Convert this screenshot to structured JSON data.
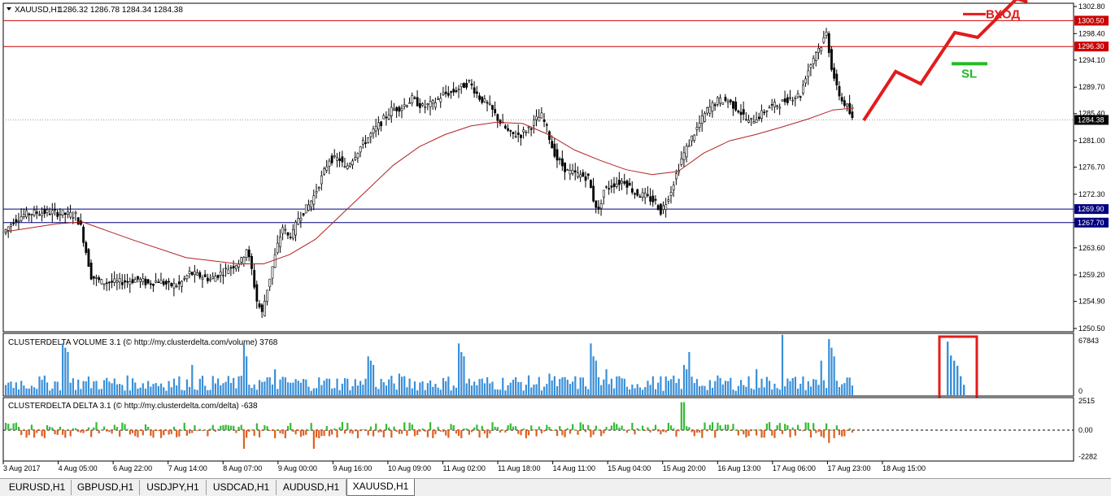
{
  "window": {
    "symbol_header": "XAUUSD,H1",
    "ohlc": "1286.32 1286.78 1284.34 1284.38"
  },
  "chart_data": [
    {
      "type": "line",
      "subtype": "candlestick_with_moving_average",
      "symbol": "XAUUSD,H1",
      "ylim": [
        1250.5,
        1302.8
      ],
      "y_ticks": [
        "1302.80",
        "1298.40",
        "1294.10",
        "1289.70",
        "1285.40",
        "1281.00",
        "1276.70",
        "1272.30",
        "1267.70",
        "1263.60",
        "1259.20",
        "1254.90",
        "1250.50"
      ],
      "x_ticks": [
        "3 Aug 2017",
        "4 Aug 05:00",
        "6 Aug 22:00",
        "7 Aug 14:00",
        "8 Aug 07:00",
        "9 Aug 00:00",
        "9 Aug 16:00",
        "10 Aug 09:00",
        "11 Aug 02:00",
        "11 Aug 18:00",
        "14 Aug 11:00",
        "15 Aug 04:00",
        "15 Aug 20:00",
        "16 Aug 13:00",
        "17 Aug 06:00",
        "17 Aug 23:00",
        "18 Aug 15:00"
      ],
      "price_levels": [
        {
          "value": 1300.5,
          "label": "1300.50",
          "color": "#cc0000"
        },
        {
          "value": 1296.3,
          "label": "1296.30",
          "color": "#cc0000"
        },
        {
          "value": 1269.9,
          "label": "1269.90",
          "color": "#00007f"
        },
        {
          "value": 1267.7,
          "label": "1267.70",
          "color": "#00007f"
        }
      ],
      "current_price": {
        "value": 1284.38,
        "label": "1284.38"
      },
      "close_path": [
        [
          0,
          1266
        ],
        [
          4,
          1268
        ],
        [
          8,
          1269
        ],
        [
          12,
          1269.3
        ],
        [
          18,
          1269.4
        ],
        [
          22,
          1269.2
        ],
        [
          28,
          1268.9
        ],
        [
          30,
          1267
        ],
        [
          32,
          1263
        ],
        [
          34,
          1259
        ],
        [
          38,
          1258
        ],
        [
          44,
          1258
        ],
        [
          48,
          1258.2
        ],
        [
          52,
          1258.5
        ],
        [
          56,
          1257.8
        ],
        [
          60,
          1258.3
        ],
        [
          64,
          1257.5
        ],
        [
          68,
          1257.6
        ],
        [
          70,
          1258.5
        ],
        [
          72,
          1259.5
        ],
        [
          76,
          1259
        ],
        [
          80,
          1258.5
        ],
        [
          84,
          1259.5
        ],
        [
          88,
          1260.5
        ],
        [
          92,
          1261.5
        ],
        [
          94,
          1263.5
        ],
        [
          96,
          1260
        ],
        [
          98,
          1255
        ],
        [
          100,
          1253
        ],
        [
          102,
          1257
        ],
        [
          104,
          1260.5
        ],
        [
          106,
          1264
        ],
        [
          108,
          1267
        ],
        [
          110,
          1265.5
        ],
        [
          112,
          1266
        ],
        [
          114,
          1268.5
        ],
        [
          116,
          1269.5
        ],
        [
          118,
          1270.5
        ],
        [
          120,
          1272
        ],
        [
          122,
          1274
        ],
        [
          124,
          1276
        ],
        [
          126,
          1278
        ],
        [
          130,
          1278
        ],
        [
          132,
          1276.5
        ],
        [
          134,
          1277.5
        ],
        [
          138,
          1280
        ],
        [
          142,
          1282
        ],
        [
          146,
          1284
        ],
        [
          150,
          1286
        ],
        [
          154,
          1286.5
        ],
        [
          158,
          1287.8
        ],
        [
          162,
          1286.5
        ],
        [
          166,
          1287
        ],
        [
          170,
          1288.5
        ],
        [
          174,
          1289
        ],
        [
          178,
          1290
        ],
        [
          180,
          1290.5
        ],
        [
          184,
          1288
        ],
        [
          188,
          1286.5
        ],
        [
          192,
          1284
        ],
        [
          196,
          1282
        ],
        [
          200,
          1282
        ],
        [
          204,
          1283.5
        ],
        [
          206,
          1284.5
        ],
        [
          208,
          1285
        ],
        [
          210,
          1283
        ],
        [
          212,
          1280
        ],
        [
          214,
          1278
        ],
        [
          218,
          1276
        ],
        [
          222,
          1275.5
        ],
        [
          226,
          1275
        ],
        [
          228,
          1271.5
        ],
        [
          230,
          1269.5
        ],
        [
          232,
          1273
        ],
        [
          236,
          1274
        ],
        [
          240,
          1274.5
        ],
        [
          244,
          1272.5
        ],
        [
          248,
          1272
        ],
        [
          252,
          1271
        ],
        [
          254,
          1269.5
        ],
        [
          256,
          1271
        ],
        [
          258,
          1273
        ],
        [
          262,
          1278
        ],
        [
          266,
          1281.5
        ],
        [
          270,
          1284.5
        ],
        [
          272,
          1286
        ],
        [
          276,
          1287.5
        ],
        [
          280,
          1287.5
        ],
        [
          284,
          1286
        ],
        [
          288,
          1284
        ],
        [
          292,
          1285
        ],
        [
          296,
          1286.5
        ],
        [
          300,
          1287
        ],
        [
          304,
          1288
        ],
        [
          308,
          1288.5
        ],
        [
          310,
          1291.5
        ],
        [
          312,
          1293.5
        ],
        [
          314,
          1295.5
        ],
        [
          316,
          1296.5
        ],
        [
          318,
          1298.5
        ],
        [
          320,
          1293
        ],
        [
          322,
          1289.5
        ],
        [
          324,
          1287.5
        ],
        [
          326,
          1286.5
        ],
        [
          328,
          1284.4
        ]
      ],
      "ma_path": [
        [
          0,
          1266.2
        ],
        [
          20,
          1267.5
        ],
        [
          30,
          1267.8
        ],
        [
          50,
          1264.8
        ],
        [
          70,
          1262
        ],
        [
          90,
          1261
        ],
        [
          100,
          1261
        ],
        [
          110,
          1262.5
        ],
        [
          120,
          1265
        ],
        [
          130,
          1269
        ],
        [
          140,
          1273
        ],
        [
          150,
          1277
        ],
        [
          160,
          1280
        ],
        [
          170,
          1282
        ],
        [
          180,
          1283.4
        ],
        [
          190,
          1284
        ],
        [
          200,
          1283.8
        ],
        [
          210,
          1282
        ],
        [
          220,
          1279.5
        ],
        [
          230,
          1277.8
        ],
        [
          240,
          1276.3
        ],
        [
          250,
          1275.5
        ],
        [
          260,
          1276
        ],
        [
          270,
          1279
        ],
        [
          280,
          1281
        ],
        [
          290,
          1282
        ],
        [
          300,
          1283.2
        ],
        [
          310,
          1284.5
        ],
        [
          320,
          1286
        ],
        [
          328,
          1286.3
        ]
      ],
      "annotations": {
        "entry_label": "ВХОД",
        "sl_label": "SL",
        "entry_color": "#e31b1b",
        "sl_color": "#22bb22",
        "forecast_path": [
          [
            0,
            0
          ],
          [
            0.28,
            0.4
          ],
          [
            0.5,
            0.3
          ],
          [
            0.8,
            0.72
          ],
          [
            1,
            0.68
          ],
          [
            1.4,
            1.05
          ]
        ]
      }
    },
    {
      "type": "bar",
      "indicator_label": "CLUSTERDELTA VOLUME 3.1 (© http://my.clusterdelta.com/volume) 3768",
      "ylim": [
        0,
        67843
      ],
      "y_ticks": [
        "67843",
        "0"
      ],
      "color": "#3a8fd8",
      "highlight_values": [
        62000,
        46000,
        40000,
        34000,
        22000,
        12000
      ]
    },
    {
      "type": "bar",
      "indicator_label": "CLUSTERDELTA DELTA 3.1 (© http://my.clusterdelta.com/delta) -638",
      "ylim": [
        -2282,
        2515
      ],
      "y_ticks": [
        "2515",
        "0.00",
        "-2282"
      ],
      "positive_color": "#33bb33",
      "negative_color": "#e06020"
    }
  ],
  "tabs": [
    {
      "label": "EURUSD,H1",
      "active": false
    },
    {
      "label": "GBPUSD,H1",
      "active": false
    },
    {
      "label": "USDJPY,H1",
      "active": false
    },
    {
      "label": "USDCAD,H1",
      "active": false
    },
    {
      "label": "AUDUSD,H1",
      "active": false
    },
    {
      "label": "XAUUSD,H1",
      "active": true
    }
  ]
}
